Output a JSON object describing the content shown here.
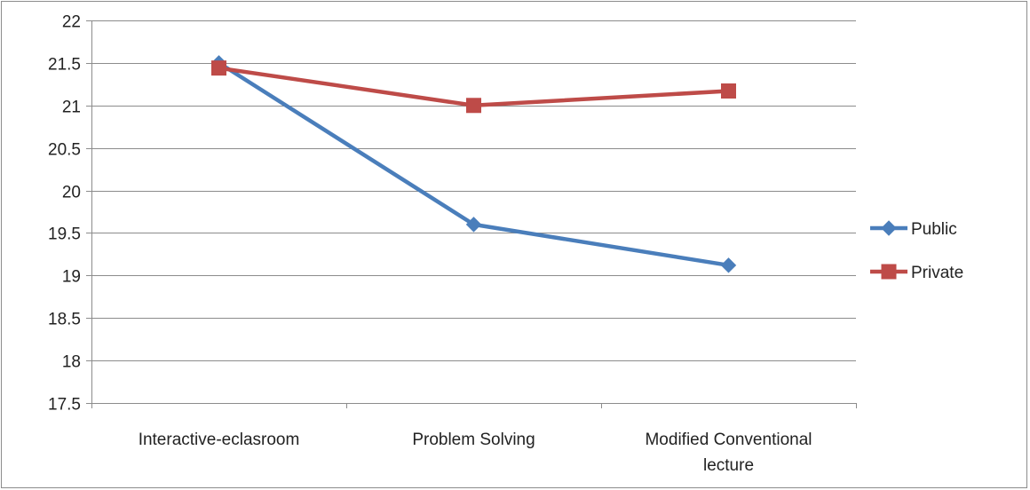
{
  "chart_data": {
    "type": "line",
    "title": "",
    "xlabel": "",
    "ylabel": "",
    "categories": [
      [
        "Interactive-eclasroom"
      ],
      [
        "Problem Solving"
      ],
      [
        "Modified Conventional",
        "lecture"
      ]
    ],
    "ylim": [
      17.5,
      22
    ],
    "yticks": [
      17.5,
      18,
      18.5,
      19,
      19.5,
      20,
      20.5,
      21,
      21.5,
      22
    ],
    "grid": true,
    "legend_position": "right",
    "series": [
      {
        "name": "Public",
        "values": [
          21.5,
          19.6,
          19.12
        ],
        "color": "#4a7ebb",
        "marker": "diamond"
      },
      {
        "name": "Private",
        "values": [
          21.44,
          21.0,
          21.17
        ],
        "color": "#be4b48",
        "marker": "square"
      }
    ]
  }
}
